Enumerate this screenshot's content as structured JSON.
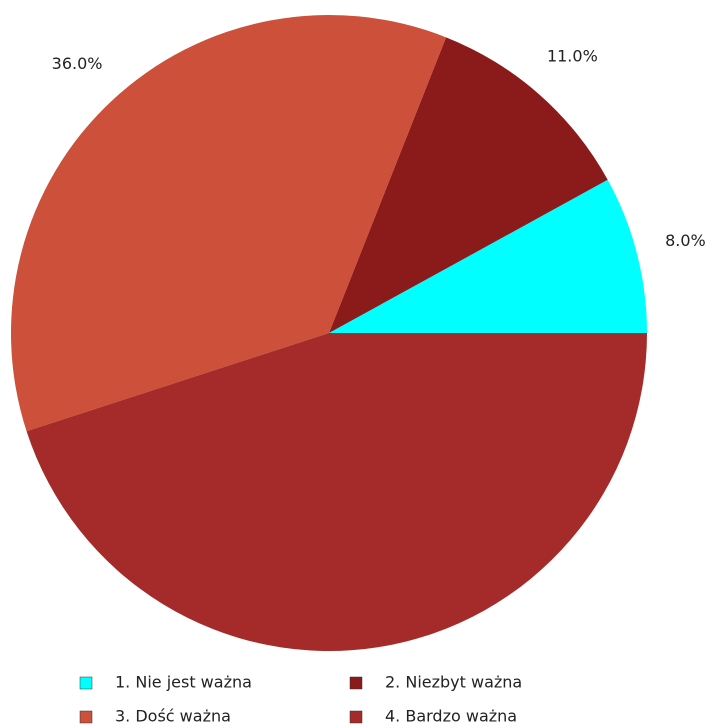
{
  "chart_data": {
    "type": "pie",
    "categories": [
      "1. Nie jest ważna",
      "2. Niezbyt ważna",
      "3. Dość ważna",
      "4. Bardzo ważna"
    ],
    "values": [
      8,
      11,
      36,
      45
    ],
    "value_labels": [
      "8.0%",
      "11.0%",
      "36.0%",
      null
    ],
    "colors": [
      "#00ffff",
      "#8b1a1a",
      "#cd503a",
      "#a52a2a"
    ]
  }
}
